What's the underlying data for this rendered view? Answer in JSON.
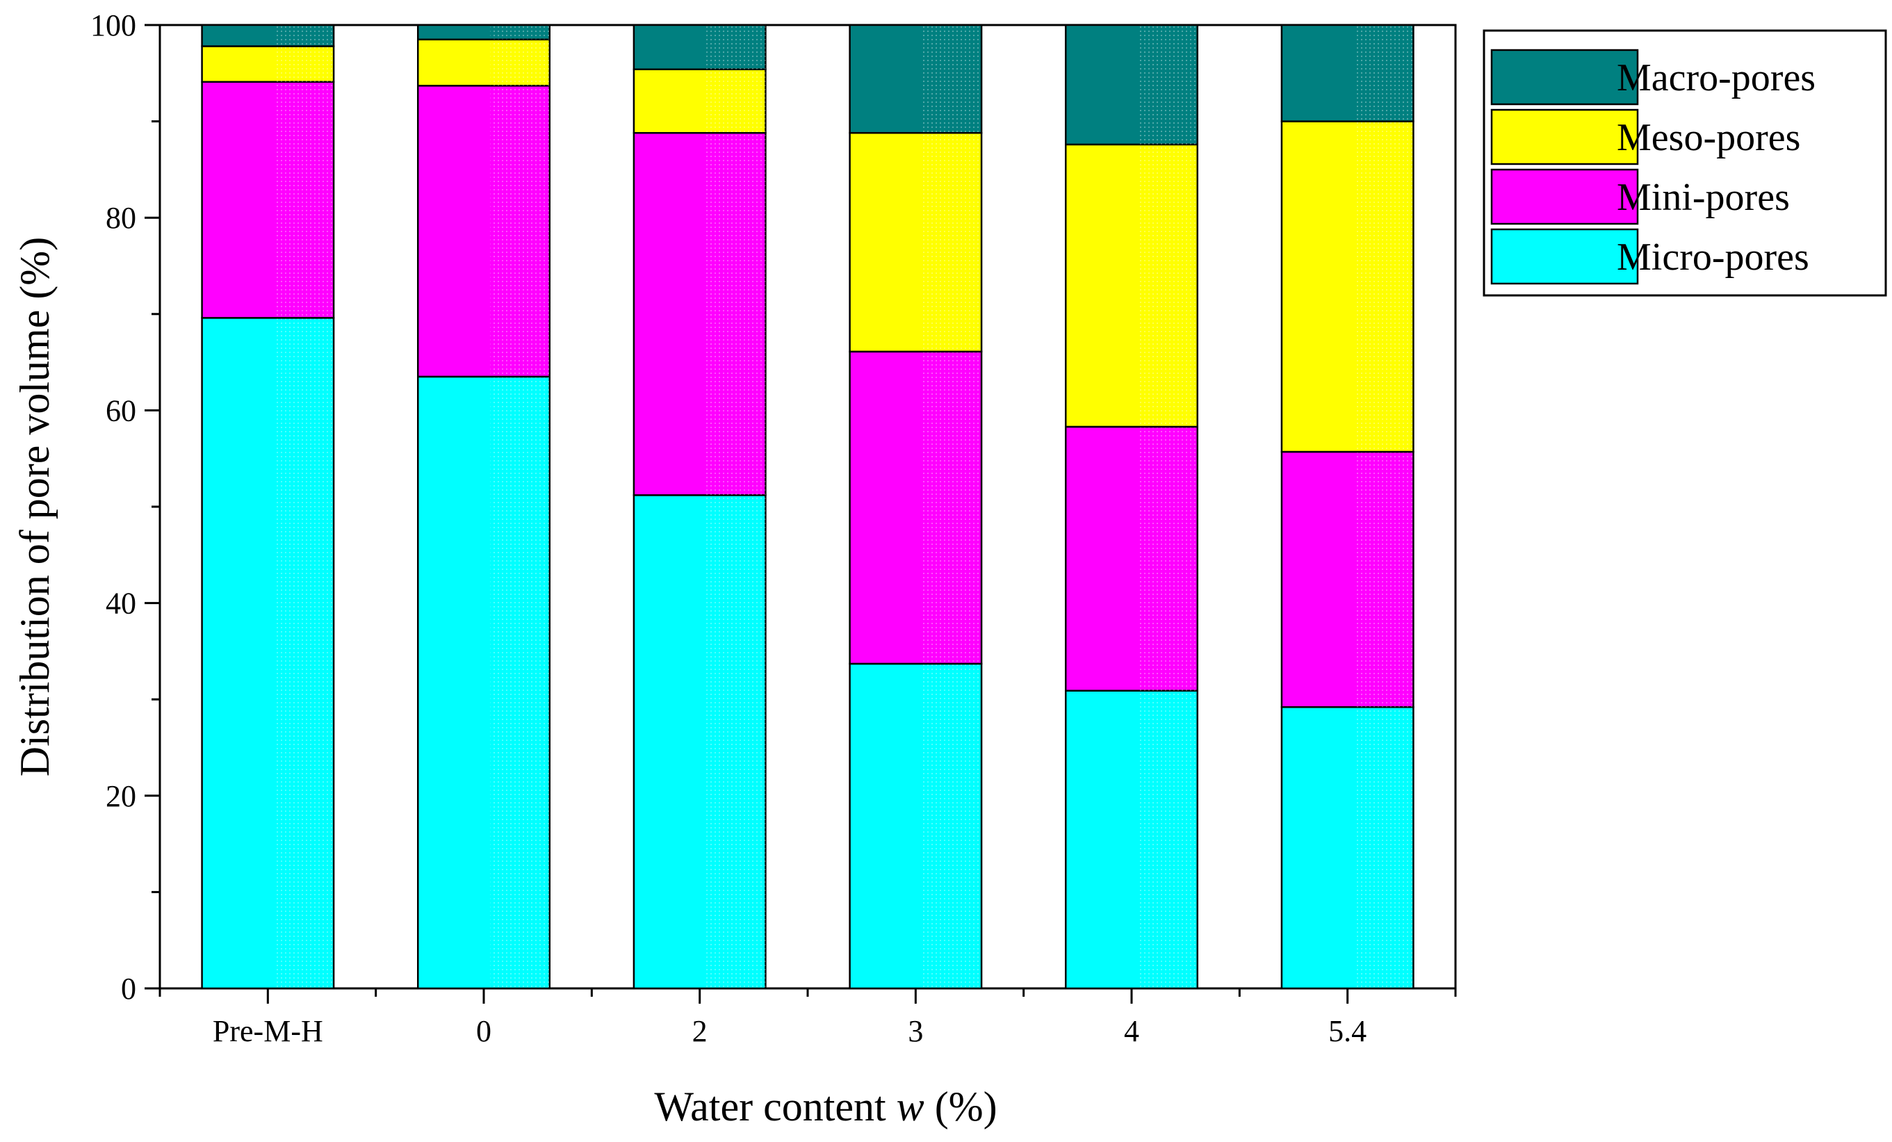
{
  "chart_data": {
    "type": "bar",
    "stacked": true,
    "title": "",
    "xlabel_prefix": "Water content ",
    "xlabel_var": "w",
    "xlabel_suffix": " (%)",
    "ylabel": "Distribution of pore volume (%)",
    "ylim": [
      0,
      100
    ],
    "yticks": [
      "0",
      "20",
      "40",
      "60",
      "80",
      "100"
    ],
    "categories": [
      "Pre-M-H",
      "0",
      "2",
      "3",
      "4",
      "5.4"
    ],
    "series": [
      {
        "name": "Micro-pores",
        "color": "#00FFFF",
        "values": [
          69.6,
          63.5,
          51.2,
          33.7,
          30.9,
          29.2
        ]
      },
      {
        "name": "Mini-pores",
        "color": "#FF00FF",
        "values": [
          24.5,
          30.2,
          37.6,
          32.4,
          27.4,
          26.5
        ]
      },
      {
        "name": "Meso-pores",
        "color": "#FFFF00",
        "values": [
          3.7,
          4.8,
          6.6,
          22.7,
          29.3,
          34.3
        ]
      },
      {
        "name": "Macro-pores",
        "color": "#008080",
        "values": [
          2.2,
          1.5,
          4.6,
          11.2,
          12.4,
          10.0
        ]
      }
    ],
    "legend_order": [
      "Macro-pores",
      "Meso-pores",
      "Mini-pores",
      "Micro-pores"
    ],
    "legend_position": "top-right outside",
    "grid": false
  }
}
